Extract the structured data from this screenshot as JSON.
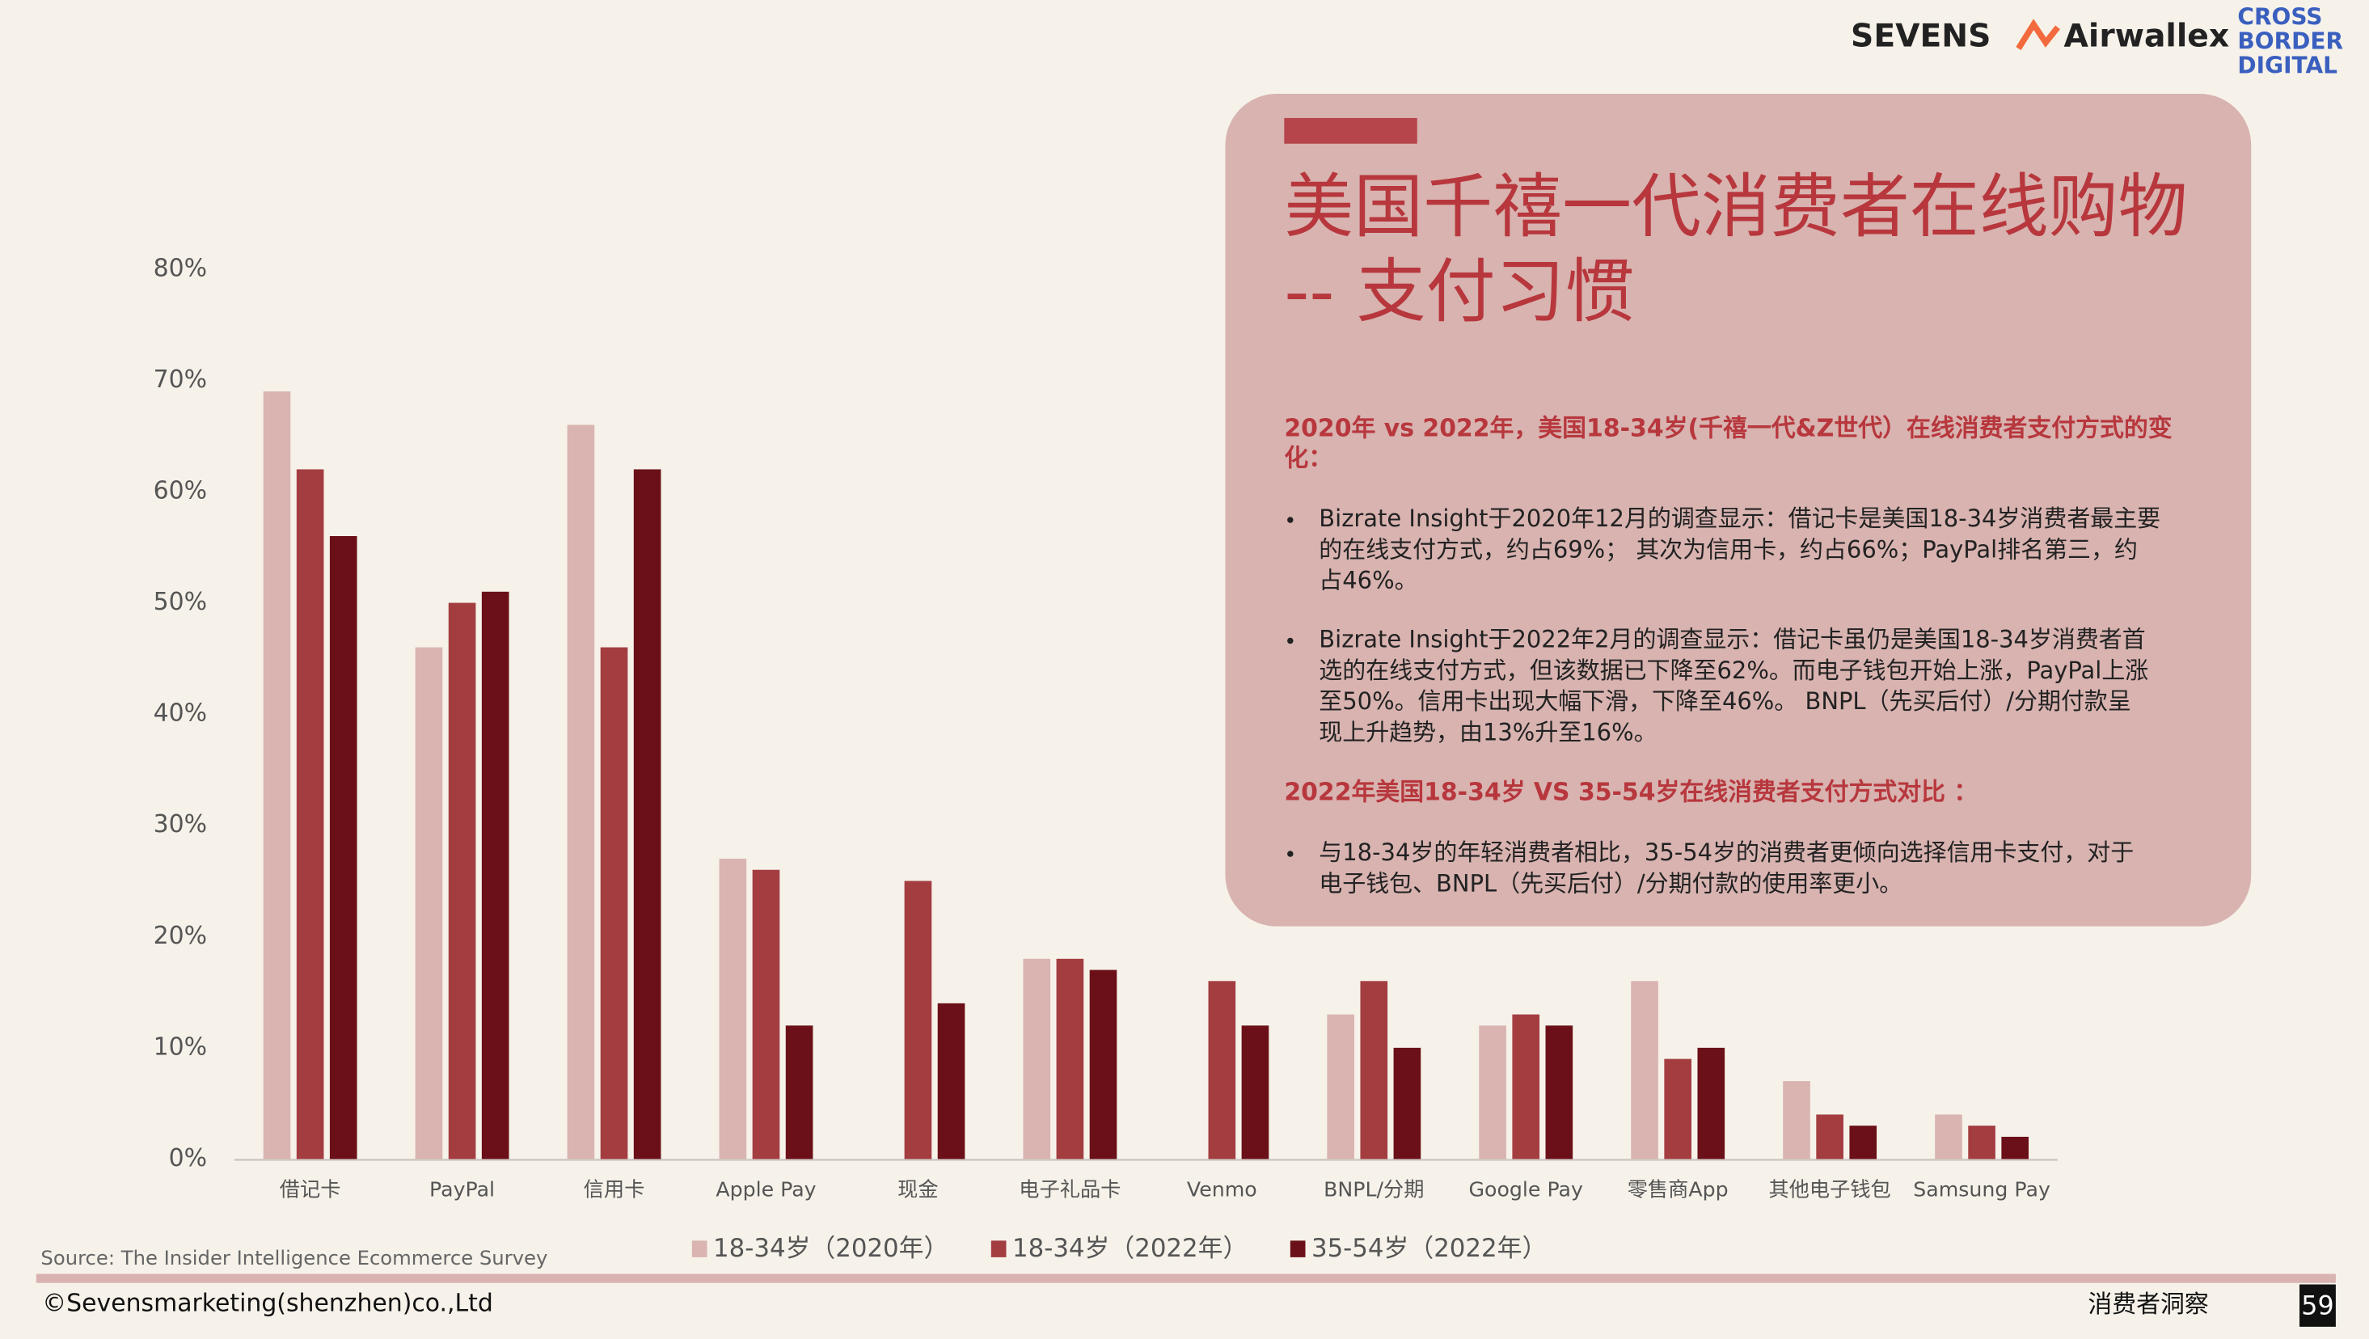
{
  "chart_data": {
    "type": "bar",
    "categories": [
      "借记卡",
      "PayPal",
      "信用卡",
      "Apple Pay",
      "现金",
      "电子礼品卡",
      "Venmo",
      "BNPL/分期",
      "Google Pay",
      "零售商App",
      "其他电子钱包",
      "Samsung Pay"
    ],
    "series": [
      {
        "name": "18-34岁（2020年）",
        "color": "#d9b4b0",
        "values": [
          69,
          46,
          66,
          27,
          null,
          18,
          null,
          13,
          12,
          16,
          7,
          4
        ]
      },
      {
        "name": "18-34岁（2022年）",
        "color": "#a33d40",
        "values": [
          62,
          50,
          46,
          26,
          25,
          18,
          16,
          16,
          13,
          9,
          4,
          3
        ]
      },
      {
        "name": "35-54岁（2022年）",
        "color": "#6b1018",
        "values": [
          56,
          51,
          62,
          12,
          14,
          17,
          12,
          10,
          12,
          10,
          3,
          2
        ]
      }
    ],
    "ylim": [
      0,
      80
    ],
    "yticks": [
      {
        "value": 0,
        "label": "0%"
      },
      {
        "value": 10,
        "label": "10%"
      },
      {
        "value": 20,
        "label": "20%"
      },
      {
        "value": 30,
        "label": "30%"
      },
      {
        "value": 40,
        "label": "40%"
      },
      {
        "value": 50,
        "label": "50%"
      },
      {
        "value": 60,
        "label": "60%"
      },
      {
        "value": 70,
        "label": "70%"
      },
      {
        "value": 80,
        "label": "80%"
      }
    ],
    "grid": false,
    "legend": "bottom",
    "source": "Source:  The Insider Intelligence Ecommerce Survey"
  },
  "slide": {
    "logos": [
      "SEVENS",
      "Airwallex",
      "CROSS",
      "BORDER",
      "DIGITAL"
    ],
    "title": [
      "美国千禧一代消费者在线购物",
      "-- 支付习惯"
    ],
    "subheading1": [
      "2020年 vs 2022年，美国18-34岁(千禧一代&Z世代）在线消费者支付方式的变",
      "化："
    ],
    "bullets1": [
      [
        "Bizrate Insight于2020年12月的调查显示：借记卡是美国18-34岁消费者最主要",
        "的在线支付方式，约占69%； 其次为信用卡，约占66%；PayPal排名第三，约",
        "占46%。"
      ],
      [
        "Bizrate Insight于2022年2月的调查显示：借记卡虽仍是美国18-34岁消费者首",
        "选的在线支付方式，但该数据已下降至62%。而电子钱包开始上涨，PayPal上涨",
        "至50%。信用卡出现大幅下滑，下降至46%。 BNPL（先买后付）/分期付款呈",
        "现上升趋势，由13%升至16%。"
      ]
    ],
    "subheading2": "2022年美国18-34岁 VS 35-54岁在线消费者支付方式对比 ：",
    "bullets2": [
      [
        "与18-34岁的年轻消费者相比，35-54岁的消费者更倾向选择信用卡支付，对于",
        "电子钱包、BNPL（先买后付）/分期付款的使用率更小。"
      ]
    ],
    "footer_left": "©Sevensmarketing(shenzhen)co.,Ltd",
    "footer_right": "消费者洞察",
    "page_number": "59"
  }
}
